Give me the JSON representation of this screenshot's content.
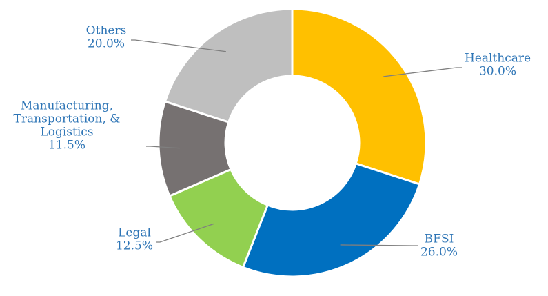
{
  "chart_data": {
    "type": "pie",
    "title": "",
    "series": [
      {
        "values": [
          30.0,
          26.0,
          12.5,
          11.5,
          20.0
        ]
      }
    ],
    "categories": [
      "Healthcare",
      "BFSI",
      "Legal",
      "Manufacturing, Transportation, & Logistics",
      "Others"
    ],
    "slices": [
      {
        "label_lines": [
          "Healthcare"
        ],
        "value": 30.0,
        "value_label": "30.0%",
        "color": "#FFC000"
      },
      {
        "label_lines": [
          "BFSI"
        ],
        "value": 26.0,
        "value_label": "26.0%",
        "color": "#0070C0"
      },
      {
        "label_lines": [
          "Legal"
        ],
        "value": 12.5,
        "value_label": "12.5%",
        "color": "#92D050"
      },
      {
        "label_lines": [
          "Manufacturing,",
          "Transportation, &",
          "Logistics"
        ],
        "value": 11.5,
        "value_label": "11.5%",
        "color": "#767171"
      },
      {
        "label_lines": [
          "Others"
        ],
        "value": 20.0,
        "value_label": "20.0%",
        "color": "#BFBFBF"
      }
    ],
    "label_color": "#2E75B6",
    "legend": "none"
  }
}
